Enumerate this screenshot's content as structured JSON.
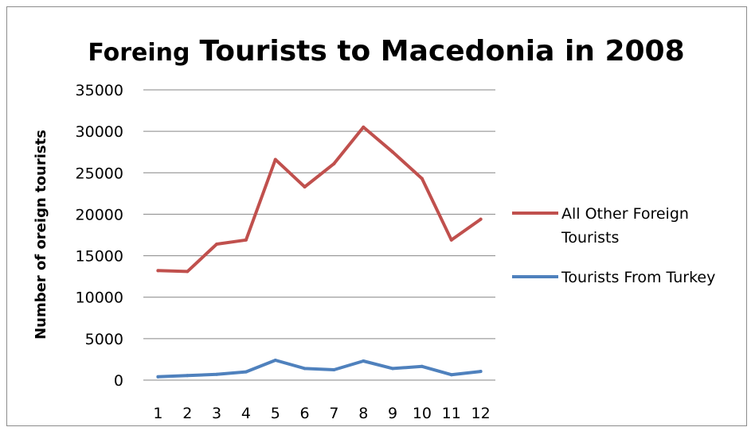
{
  "chart_data": {
    "type": "line",
    "title_part1": "Foreing",
    "title_part2": "Tourists to Macedonia in 2008",
    "xlabel": "",
    "ylabel": "Number of oreign tourists",
    "ylim": [
      0,
      35000
    ],
    "yticks": [
      "0",
      "5000",
      "10000",
      "15000",
      "20000",
      "25000",
      "30000",
      "35000"
    ],
    "categories": [
      "1",
      "2",
      "3",
      "4",
      "5",
      "6",
      "7",
      "8",
      "9",
      "10",
      "11",
      "12"
    ],
    "grid": true,
    "legend_position": "right",
    "series": [
      {
        "name_lines": [
          "All Other Foreign",
          "Tourists"
        ],
        "color": "#c0504d",
        "values": [
          13200,
          13100,
          16400,
          16900,
          26600,
          23300,
          26100,
          30500,
          27500,
          24300,
          16900,
          19400
        ]
      },
      {
        "name_lines": [
          "Tourists From Turkey"
        ],
        "color": "#4f81bd",
        "values": [
          400,
          550,
          700,
          1000,
          2400,
          1400,
          1250,
          2300,
          1400,
          1650,
          650,
          1050
        ]
      }
    ]
  }
}
